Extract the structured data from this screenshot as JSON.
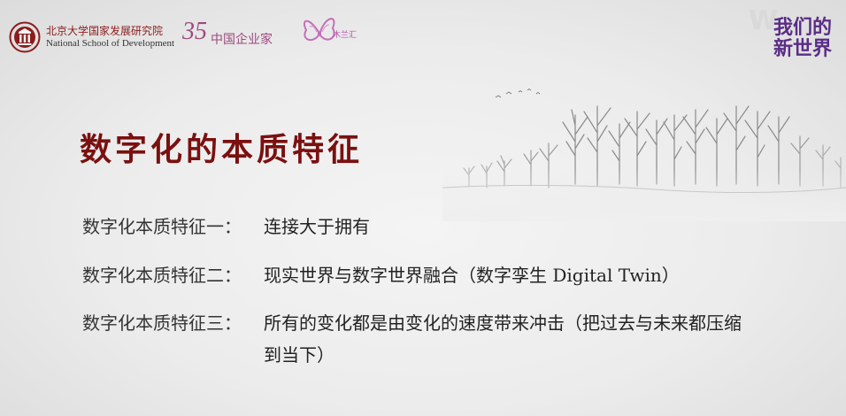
{
  "header": {
    "pku_name_cn": "北京大学国家发展研究院",
    "pku_name_en": "National School of Development",
    "logo35_number": "35",
    "logo35_text": "中国企业家",
    "butterfly_text": "木兰汇",
    "watermark_line1": "我们的",
    "watermark_line2": "新世界"
  },
  "slide": {
    "title": "数字化的本质特征",
    "features": [
      {
        "label": "数字化本质特征一：",
        "text": "连接大于拥有"
      },
      {
        "label": "数字化本质特征二：",
        "text": "现实世界与数字世界融合（数字孪生 Digital Twin）"
      },
      {
        "label": "数字化本质特征三：",
        "text": "所有的变化都是由变化的速度带来冲击（把过去与未来都压缩到当下）"
      }
    ]
  },
  "colors": {
    "title": "#7a1010",
    "pku_red": "#8a1c1c",
    "logo_purple": "#9c4a7e",
    "watermark_purple": "#5a2d86"
  },
  "icons": {
    "pku_logo": "pku-emblem-icon",
    "butterfly_logo": "butterfly-icon"
  }
}
